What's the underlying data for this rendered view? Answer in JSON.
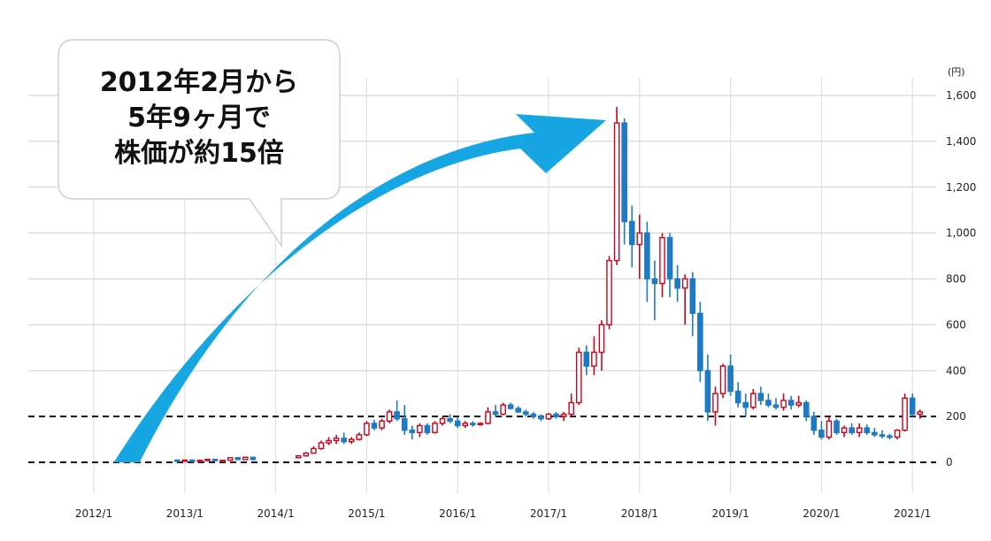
{
  "chart_data": {
    "type": "candlestick",
    "y_unit": "(円)",
    "ylim": [
      0,
      1600
    ],
    "yticks": [
      0,
      200,
      400,
      600,
      800,
      1000,
      1200,
      1400,
      1600
    ],
    "ytick_labels": [
      "0",
      "200",
      "400",
      "600",
      "800",
      "1,000",
      "1,200",
      "1,400",
      "1,600"
    ],
    "x_tick_labels": [
      "2012/1",
      "2013/1",
      "2014/1",
      "2015/1",
      "2016/1",
      "2017/1",
      "2018/1",
      "2019/1",
      "2020/1",
      "2021/1"
    ],
    "x_range": [
      "2011-09",
      "2021-05"
    ],
    "reference_lines": [
      {
        "value": 0,
        "style": "dashed"
      },
      {
        "value": 200,
        "style": "dashed"
      }
    ],
    "colors": {
      "up": "#d0021b",
      "down": "#1f7ac4",
      "arrow": "#15a6e3"
    },
    "callout": {
      "lines": [
        "2012年2月から",
        "5年9ヶ月で",
        "株価が約15倍"
      ]
    },
    "arrow": {
      "from": {
        "x": "2012-04",
        "y": 0
      },
      "to": {
        "x": "2017-10",
        "y": 1500
      }
    },
    "candles": [
      [
        "2012-12",
        10,
        12,
        8,
        9
      ],
      [
        "2013-01",
        9,
        11,
        7,
        10
      ],
      [
        "2013-02",
        10,
        12,
        8,
        8
      ],
      [
        "2013-03",
        8,
        11,
        6,
        9
      ],
      [
        "2013-04",
        9,
        14,
        8,
        13
      ],
      [
        "2013-05",
        13,
        15,
        7,
        8
      ],
      [
        "2013-06",
        8,
        10,
        5,
        9
      ],
      [
        "2013-07",
        9,
        22,
        8,
        20
      ],
      [
        "2013-08",
        20,
        24,
        10,
        12
      ],
      [
        "2013-09",
        12,
        25,
        10,
        22
      ],
      [
        "2013-10",
        22,
        24,
        10,
        12
      ],
      [
        "2014-04",
        20,
        30,
        18,
        28
      ],
      [
        "2014-05",
        28,
        45,
        25,
        40
      ],
      [
        "2014-06",
        40,
        70,
        38,
        60
      ],
      [
        "2014-07",
        60,
        95,
        55,
        85
      ],
      [
        "2014-08",
        85,
        110,
        75,
        95
      ],
      [
        "2014-09",
        95,
        120,
        80,
        105
      ],
      [
        "2014-10",
        105,
        130,
        80,
        90
      ],
      [
        "2014-11",
        90,
        110,
        80,
        100
      ],
      [
        "2014-12",
        100,
        130,
        95,
        120
      ],
      [
        "2015-01",
        120,
        180,
        115,
        170
      ],
      [
        "2015-02",
        170,
        185,
        140,
        150
      ],
      [
        "2015-03",
        150,
        190,
        140,
        180
      ],
      [
        "2015-04",
        180,
        230,
        170,
        220
      ],
      [
        "2015-05",
        220,
        270,
        180,
        190
      ],
      [
        "2015-06",
        190,
        250,
        120,
        140
      ],
      [
        "2015-07",
        140,
        160,
        100,
        130
      ],
      [
        "2015-08",
        130,
        170,
        110,
        160
      ],
      [
        "2015-09",
        160,
        170,
        120,
        130
      ],
      [
        "2015-10",
        130,
        180,
        125,
        170
      ],
      [
        "2015-11",
        170,
        200,
        160,
        190
      ],
      [
        "2015-12",
        190,
        210,
        170,
        180
      ],
      [
        "2016-01",
        180,
        195,
        150,
        160
      ],
      [
        "2016-02",
        160,
        180,
        150,
        170
      ],
      [
        "2016-03",
        170,
        180,
        155,
        165
      ],
      [
        "2016-04",
        165,
        175,
        160,
        170
      ],
      [
        "2016-05",
        170,
        240,
        165,
        220
      ],
      [
        "2016-06",
        220,
        250,
        200,
        210
      ],
      [
        "2016-07",
        210,
        260,
        205,
        250
      ],
      [
        "2016-08",
        250,
        260,
        230,
        235
      ],
      [
        "2016-09",
        235,
        245,
        215,
        220
      ],
      [
        "2016-10",
        220,
        230,
        200,
        210
      ],
      [
        "2016-11",
        210,
        220,
        190,
        200
      ],
      [
        "2016-12",
        200,
        210,
        180,
        190
      ],
      [
        "2017-01",
        190,
        215,
        185,
        210
      ],
      [
        "2017-02",
        210,
        220,
        190,
        200
      ],
      [
        "2017-03",
        200,
        220,
        180,
        210
      ],
      [
        "2017-04",
        210,
        300,
        200,
        260
      ],
      [
        "2017-05",
        260,
        500,
        250,
        480
      ],
      [
        "2017-06",
        480,
        510,
        380,
        420
      ],
      [
        "2017-07",
        420,
        550,
        380,
        480
      ],
      [
        "2017-08",
        480,
        620,
        400,
        600
      ],
      [
        "2017-09",
        600,
        900,
        580,
        880
      ],
      [
        "2017-10",
        880,
        1550,
        860,
        1480
      ],
      [
        "2017-11",
        1480,
        1500,
        950,
        1050
      ],
      [
        "2017-12",
        1050,
        1120,
        850,
        950
      ],
      [
        "2018-01",
        950,
        1080,
        800,
        1000
      ],
      [
        "2018-02",
        1000,
        1050,
        700,
        800
      ],
      [
        "2018-03",
        800,
        880,
        620,
        780
      ],
      [
        "2018-04",
        780,
        1000,
        720,
        980
      ],
      [
        "2018-05",
        980,
        1000,
        720,
        800
      ],
      [
        "2018-06",
        800,
        860,
        700,
        760
      ],
      [
        "2018-07",
        760,
        820,
        600,
        800
      ],
      [
        "2018-08",
        800,
        830,
        550,
        650
      ],
      [
        "2018-09",
        650,
        700,
        350,
        400
      ],
      [
        "2018-10",
        400,
        470,
        180,
        220
      ],
      [
        "2018-11",
        220,
        330,
        160,
        300
      ],
      [
        "2018-12",
        300,
        430,
        280,
        420
      ],
      [
        "2019-01",
        420,
        470,
        290,
        310
      ],
      [
        "2019-02",
        310,
        350,
        240,
        260
      ],
      [
        "2019-03",
        260,
        300,
        200,
        240
      ],
      [
        "2019-04",
        240,
        320,
        230,
        300
      ],
      [
        "2019-05",
        300,
        330,
        250,
        270
      ],
      [
        "2019-06",
        270,
        300,
        240,
        250
      ],
      [
        "2019-07",
        250,
        280,
        230,
        240
      ],
      [
        "2019-08",
        240,
        300,
        225,
        270
      ],
      [
        "2019-09",
        270,
        290,
        230,
        250
      ],
      [
        "2019-10",
        250,
        290,
        240,
        260
      ],
      [
        "2019-11",
        260,
        270,
        180,
        200
      ],
      [
        "2019-12",
        200,
        220,
        120,
        140
      ],
      [
        "2020-01",
        140,
        180,
        100,
        110
      ],
      [
        "2020-02",
        110,
        200,
        100,
        180
      ],
      [
        "2020-03",
        180,
        190,
        120,
        130
      ],
      [
        "2020-04",
        130,
        160,
        110,
        150
      ],
      [
        "2020-05",
        150,
        170,
        120,
        130
      ],
      [
        "2020-06",
        130,
        170,
        110,
        150
      ],
      [
        "2020-07",
        150,
        165,
        120,
        130
      ],
      [
        "2020-08",
        130,
        150,
        110,
        120
      ],
      [
        "2020-09",
        120,
        140,
        105,
        115
      ],
      [
        "2020-10",
        115,
        125,
        100,
        110
      ],
      [
        "2020-11",
        110,
        145,
        100,
        140
      ],
      [
        "2020-12",
        140,
        300,
        135,
        280
      ],
      [
        "2021-01",
        280,
        300,
        200,
        210
      ],
      [
        "2021-02",
        210,
        230,
        190,
        220
      ]
    ]
  }
}
